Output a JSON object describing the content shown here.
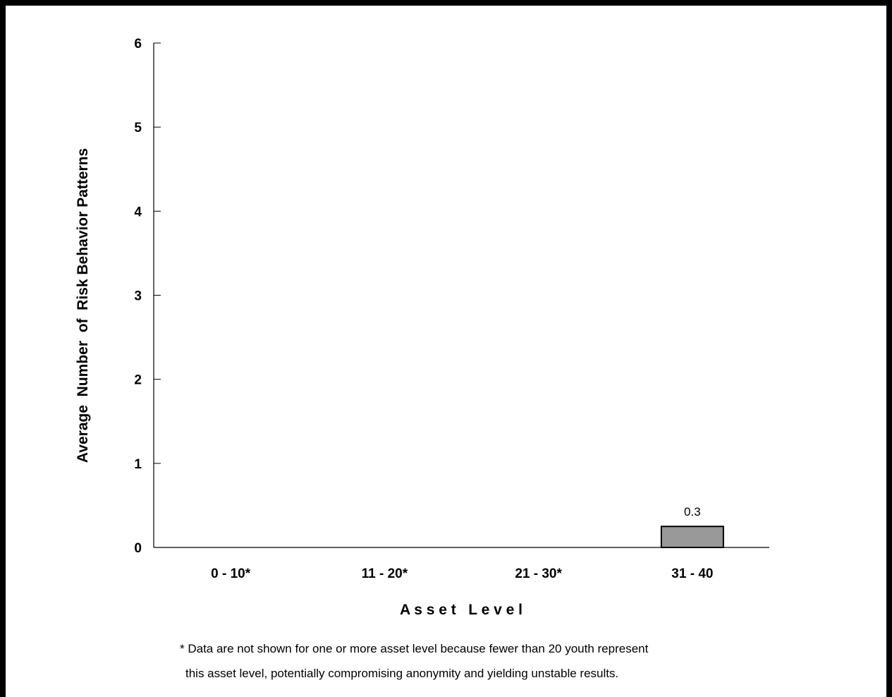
{
  "chart_data": {
    "type": "bar",
    "categories": [
      "0 - 10*",
      "11 - 20*",
      "21 - 30*",
      "31 - 40"
    ],
    "values": [
      null,
      null,
      null,
      0.25
    ],
    "data_labels": [
      "",
      "",
      "",
      "0.3"
    ],
    "xlabel": "A s s e t   L e v e l",
    "ylabel": "Average  Number  of  Risk Behavior Patterns",
    "ylim": [
      0,
      6
    ],
    "yticks": [
      "0",
      "1",
      "2",
      "3",
      "4",
      "5",
      "6"
    ],
    "grid": false,
    "bar_color": "#999999",
    "footnote": [
      "* Data are not shown for one or more asset level because fewer than 20 youth represent",
      "this asset level, potentially compromising anonymity and yielding unstable results."
    ]
  }
}
